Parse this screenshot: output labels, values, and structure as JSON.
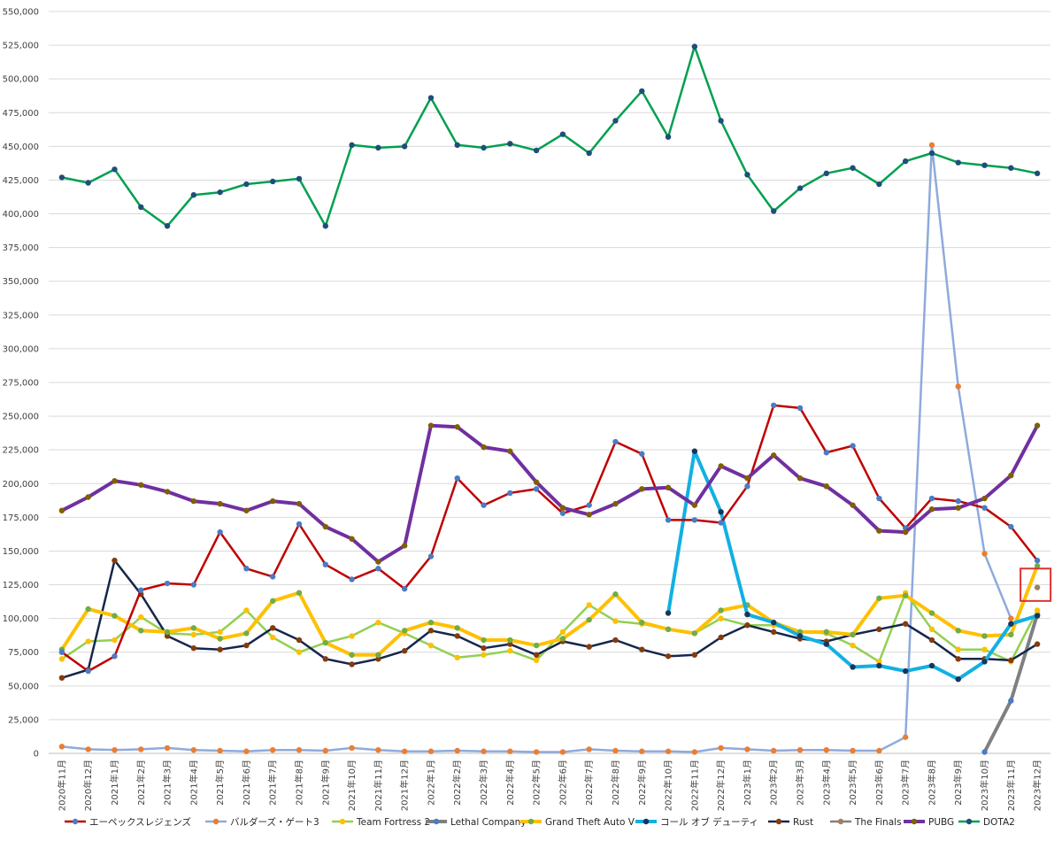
{
  "chart_data": {
    "type": "line",
    "title": "",
    "xlabel": "",
    "ylabel": "",
    "ylim": [
      0,
      550000
    ],
    "ytick_step": 25000,
    "grid": true,
    "legend_position": "bottom",
    "categories": [
      "2020年11月",
      "2020年12月",
      "2021年1月",
      "2021年2月",
      "2021年3月",
      "2021年4月",
      "2021年5月",
      "2021年6月",
      "2021年7月",
      "2021年8月",
      "2021年9月",
      "2021年10月",
      "2021年11月",
      "2021年12月",
      "2022年1月",
      "2022年2月",
      "2022年3月",
      "2022年4月",
      "2022年5月",
      "2022年6月",
      "2022年7月",
      "2022年8月",
      "2022年9月",
      "2022年10月",
      "2022年11月",
      "2022年12月",
      "2023年1月",
      "2023年2月",
      "2023年3月",
      "2023年4月",
      "2023年5月",
      "2023年6月",
      "2023年7月",
      "2023年8月",
      "2023年9月",
      "2023年10月",
      "2023年11月",
      "2023年12月"
    ],
    "yticks": [
      "0",
      "25,000",
      "50,000",
      "75,000",
      "100,000",
      "125,000",
      "150,000",
      "175,000",
      "200,000",
      "225,000",
      "250,000",
      "275,000",
      "300,000",
      "325,000",
      "350,000",
      "375,000",
      "400,000",
      "425,000",
      "450,000",
      "475,000",
      "500,000",
      "525,000",
      "550,000"
    ],
    "series": [
      {
        "name": "エーペックスレジェンズ",
        "color": "#c00000",
        "marker": "#4a7cc4",
        "width": 2.5,
        "values": [
          75000,
          61000,
          72000,
          121000,
          126000,
          125000,
          164000,
          137000,
          131000,
          170000,
          140000,
          129000,
          137000,
          122000,
          146000,
          204000,
          184000,
          193000,
          196000,
          178000,
          184000,
          231000,
          222000,
          173000,
          173000,
          171000,
          198000,
          258000,
          256000,
          223000,
          228000,
          189000,
          167000,
          189000,
          187000,
          182000,
          168000,
          143000
        ]
      },
      {
        "name": "バルダーズ・ゲート3",
        "color": "#8faadc",
        "marker": "#ed7d31",
        "width": 2.5,
        "values": [
          5000,
          3000,
          2500,
          3000,
          4000,
          2500,
          2000,
          1500,
          2500,
          2500,
          2000,
          4000,
          2500,
          1500,
          1500,
          2000,
          1500,
          1500,
          1000,
          1000,
          3000,
          2000,
          1500,
          1500,
          1000,
          4000,
          3000,
          2000,
          2500,
          2500,
          2000,
          2000,
          12000,
          451000,
          272000,
          148000,
          100000,
          null
        ]
      },
      {
        "name": "Team Fortress 2",
        "color": "#92d050",
        "marker": "#ffc000",
        "width": 2.5,
        "values": [
          70000,
          83000,
          84000,
          101000,
          89000,
          88000,
          90000,
          106000,
          86000,
          75000,
          82000,
          87000,
          97000,
          89000,
          80000,
          71000,
          73000,
          76000,
          69000,
          90000,
          110000,
          98000,
          96000,
          92000,
          89000,
          100000,
          95000,
          95000,
          90000,
          89000,
          80000,
          68000,
          119000,
          92000,
          77000,
          77000,
          68000,
          106000
        ]
      },
      {
        "name": "Lethal Company",
        "color": "#808080",
        "marker": "#4a7cc4",
        "width": 4,
        "values": [
          null,
          null,
          null,
          null,
          null,
          null,
          null,
          null,
          null,
          null,
          null,
          null,
          null,
          null,
          null,
          null,
          null,
          null,
          null,
          null,
          null,
          null,
          null,
          null,
          null,
          null,
          null,
          null,
          null,
          null,
          null,
          null,
          null,
          null,
          null,
          1000,
          39000,
          103000
        ]
      },
      {
        "name": "Grand Theft Auto V",
        "color": "#ffc000",
        "marker": "#70ad47",
        "width": 4,
        "values": [
          77000,
          107000,
          102000,
          91000,
          90000,
          93000,
          85000,
          89000,
          113000,
          119000,
          82000,
          73000,
          73000,
          91000,
          97000,
          93000,
          84000,
          84000,
          80000,
          85000,
          99000,
          118000,
          97000,
          92000,
          89000,
          106000,
          110000,
          97000,
          90000,
          90000,
          88000,
          115000,
          117000,
          104000,
          91000,
          87000,
          88000,
          139000
        ]
      },
      {
        "name": "コール オブ デューティ",
        "color": "#12b0e3",
        "marker": "#16365c",
        "width": 4,
        "values": [
          null,
          null,
          null,
          null,
          null,
          null,
          null,
          null,
          null,
          null,
          null,
          null,
          null,
          null,
          null,
          null,
          null,
          null,
          null,
          null,
          null,
          null,
          null,
          104000,
          224000,
          179000,
          103000,
          97000,
          87000,
          81000,
          64000,
          65000,
          61000,
          65000,
          55000,
          68000,
          96000,
          102000
        ]
      },
      {
        "name": "Rust",
        "color": "#16264c",
        "marker": "#843c0c",
        "width": 2.5,
        "values": [
          56000,
          62000,
          143000,
          118000,
          87000,
          78000,
          77000,
          80000,
          93000,
          84000,
          70000,
          66000,
          70000,
          76000,
          91000,
          87000,
          78000,
          81000,
          73000,
          83000,
          79000,
          84000,
          77000,
          72000,
          73000,
          86000,
          95000,
          90000,
          85000,
          83000,
          88000,
          92000,
          96000,
          84000,
          70000,
          70000,
          69000,
          81000
        ]
      },
      {
        "name": "The Finals",
        "color": "#7f7f7f",
        "marker": "#a08060",
        "width": 2.5,
        "values": [
          null,
          null,
          null,
          null,
          null,
          null,
          null,
          null,
          null,
          null,
          null,
          null,
          null,
          null,
          null,
          null,
          null,
          null,
          null,
          null,
          null,
          null,
          null,
          null,
          null,
          null,
          null,
          null,
          null,
          null,
          null,
          null,
          null,
          null,
          null,
          null,
          null,
          123000
        ]
      },
      {
        "name": "PUBG",
        "color": "#7030a0",
        "marker": "#7f6000",
        "width": 4,
        "values": [
          180000,
          190000,
          202000,
          199000,
          194000,
          187000,
          185000,
          180000,
          187000,
          185000,
          168000,
          159000,
          142000,
          154000,
          243000,
          242000,
          227000,
          224000,
          201000,
          182000,
          177000,
          185000,
          196000,
          197000,
          184000,
          213000,
          204000,
          221000,
          204000,
          198000,
          184000,
          165000,
          164000,
          181000,
          182000,
          189000,
          206000,
          243000
        ]
      },
      {
        "name": "DOTA2",
        "color": "#00a050",
        "marker": "#1f4e79",
        "width": 2.5,
        "values": [
          427000,
          423000,
          433000,
          405000,
          391000,
          414000,
          416000,
          422000,
          424000,
          426000,
          391000,
          451000,
          449000,
          450000,
          486000,
          451000,
          449000,
          452000,
          447000,
          459000,
          445000,
          469000,
          491000,
          457000,
          524000,
          469000,
          429000,
          402000,
          419000,
          430000,
          434000,
          422000,
          439000,
          445000,
          438000,
          436000,
          434000,
          430000
        ]
      }
    ]
  }
}
